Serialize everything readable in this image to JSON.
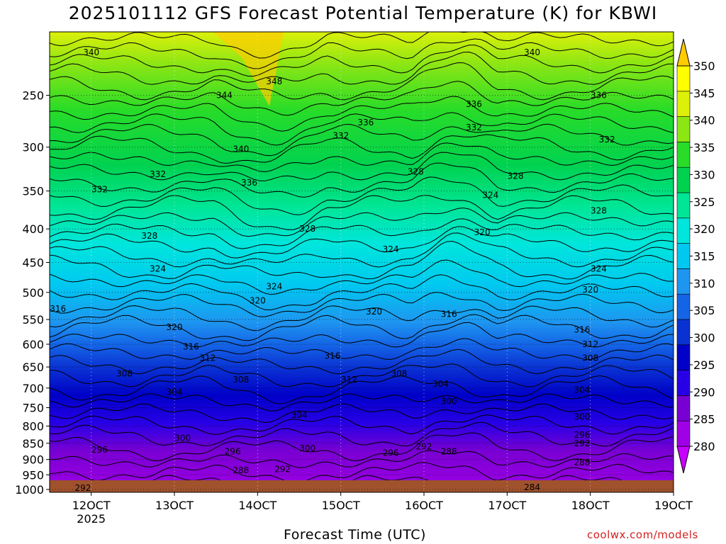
{
  "chart_data": {
    "type": "heatmap",
    "title": "2025101112 GFS Forecast Potential Temperature (K) for KBWI",
    "xlabel": "Forecast Time (UTC)",
    "ylabel": "",
    "credit": "coolwx.com/models",
    "y_scale": "log-pressure",
    "ylim": [
      1010,
      200
    ],
    "y_ticks": [
      250,
      300,
      350,
      400,
      450,
      500,
      550,
      600,
      650,
      700,
      750,
      800,
      850,
      900,
      950,
      1000
    ],
    "x_ticks": [
      "12OCT",
      "13OCT",
      "14OCT",
      "15OCT",
      "16OCT",
      "17OCT",
      "18OCT",
      "19OCT"
    ],
    "x_year_label": "2025",
    "colorbar": {
      "levels": [
        280,
        285,
        290,
        295,
        300,
        305,
        310,
        315,
        320,
        325,
        330,
        335,
        340,
        345,
        350
      ],
      "colors": [
        "#c800ff",
        "#a000e6",
        "#7800d2",
        "#2800e6",
        "#0000c8",
        "#0a32d2",
        "#1464e6",
        "#1e96f0",
        "#00c8f0",
        "#00e6dc",
        "#00e696",
        "#00d250",
        "#28dc28",
        "#8ce614",
        "#dcf00a",
        "#ffff00",
        "#ffcc00"
      ]
    },
    "contour_interval": 4,
    "contour_labels": [
      {
        "value": "340",
        "t": "12OCT",
        "p": 215
      },
      {
        "value": "344",
        "t": "13.6OCT",
        "p": 250
      },
      {
        "value": "348",
        "t": "14.2OCT",
        "p": 238
      },
      {
        "value": "340",
        "t": "13.8OCT",
        "p": 302
      },
      {
        "value": "336",
        "t": "13.9OCT",
        "p": 340
      },
      {
        "value": "336",
        "t": "15.3OCT",
        "p": 275
      },
      {
        "value": "332",
        "t": "12.8OCT",
        "p": 330
      },
      {
        "value": "332",
        "t": "15.0OCT",
        "p": 288
      },
      {
        "value": "336",
        "t": "16.6OCT",
        "p": 258
      },
      {
        "value": "332",
        "t": "16.6OCT",
        "p": 280
      },
      {
        "value": "340",
        "t": "17.3OCT",
        "p": 215
      },
      {
        "value": "336",
        "t": "18.1OCT",
        "p": 250
      },
      {
        "value": "332",
        "t": "18.2OCT",
        "p": 292
      },
      {
        "value": "332",
        "t": "12.1OCT",
        "p": 348
      },
      {
        "value": "328",
        "t": "12.7OCT",
        "p": 410
      },
      {
        "value": "328",
        "t": "14.6OCT",
        "p": 400
      },
      {
        "value": "328",
        "t": "15.9OCT",
        "p": 327
      },
      {
        "value": "328",
        "t": "17.1OCT",
        "p": 332
      },
      {
        "value": "324",
        "t": "16.8OCT",
        "p": 355
      },
      {
        "value": "328",
        "t": "18.1OCT",
        "p": 375
      },
      {
        "value": "324",
        "t": "12.8OCT",
        "p": 460
      },
      {
        "value": "324",
        "t": "14.2OCT",
        "p": 490
      },
      {
        "value": "324",
        "t": "15.6OCT",
        "p": 430
      },
      {
        "value": "320",
        "t": "16.7OCT",
        "p": 405
      },
      {
        "value": "324",
        "t": "18.1OCT",
        "p": 460
      },
      {
        "value": "316",
        "t": "11.6OCT",
        "p": 530
      },
      {
        "value": "320",
        "t": "13.0OCT",
        "p": 565
      },
      {
        "value": "320",
        "t": "14.0OCT",
        "p": 515
      },
      {
        "value": "320",
        "t": "15.4OCT",
        "p": 535
      },
      {
        "value": "316",
        "t": "16.3OCT",
        "p": 540
      },
      {
        "value": "320",
        "t": "18.0OCT",
        "p": 495
      },
      {
        "value": "316",
        "t": "13.2OCT",
        "p": 605
      },
      {
        "value": "312",
        "t": "13.4OCT",
        "p": 630
      },
      {
        "value": "316",
        "t": "14.9OCT",
        "p": 625
      },
      {
        "value": "316",
        "t": "17.9OCT",
        "p": 570
      },
      {
        "value": "312",
        "t": "18.0OCT",
        "p": 600
      },
      {
        "value": "308",
        "t": "12.4OCT",
        "p": 665
      },
      {
        "value": "308",
        "t": "13.8OCT",
        "p": 680
      },
      {
        "value": "312",
        "t": "15.1OCT",
        "p": 680
      },
      {
        "value": "308",
        "t": "15.7OCT",
        "p": 665
      },
      {
        "value": "304",
        "t": "13.0OCT",
        "p": 710
      },
      {
        "value": "304",
        "t": "16.2OCT",
        "p": 690
      },
      {
        "value": "308",
        "t": "18.0OCT",
        "p": 630
      },
      {
        "value": "304",
        "t": "17.9OCT",
        "p": 705
      },
      {
        "value": "300",
        "t": "16.3OCT",
        "p": 733
      },
      {
        "value": "304",
        "t": "14.5OCT",
        "p": 770
      },
      {
        "value": "300",
        "t": "17.9OCT",
        "p": 775
      },
      {
        "value": "300",
        "t": "13.1OCT",
        "p": 835
      },
      {
        "value": "296",
        "t": "12.1OCT",
        "p": 870
      },
      {
        "value": "296",
        "t": "13.7OCT",
        "p": 875
      },
      {
        "value": "300",
        "t": "14.6OCT",
        "p": 865
      },
      {
        "value": "296",
        "t": "15.6OCT",
        "p": 880
      },
      {
        "value": "292",
        "t": "16.0OCT",
        "p": 860
      },
      {
        "value": "288",
        "t": "16.3OCT",
        "p": 875
      },
      {
        "value": "296",
        "t": "17.9OCT",
        "p": 825
      },
      {
        "value": "292",
        "t": "17.9OCT",
        "p": 850
      },
      {
        "value": "288",
        "t": "17.9OCT",
        "p": 910
      },
      {
        "value": "288",
        "t": "13.8OCT",
        "p": 935
      },
      {
        "value": "292",
        "t": "14.3OCT",
        "p": 932
      },
      {
        "value": "292",
        "t": "11.9OCT",
        "p": 995
      },
      {
        "value": "284",
        "t": "17.3OCT",
        "p": 992
      }
    ]
  }
}
